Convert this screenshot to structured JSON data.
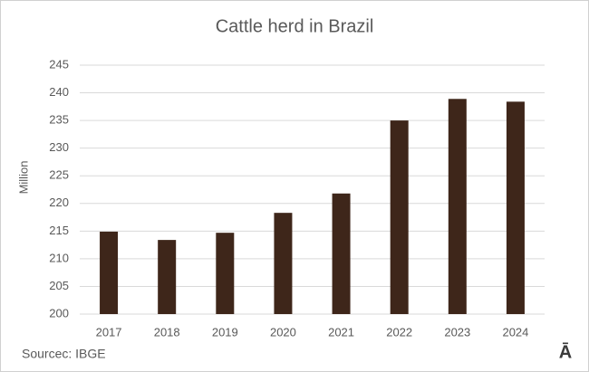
{
  "chart_data": {
    "type": "bar",
    "title": "Cattle herd in Brazil",
    "y_label": "Million",
    "source": "Sourcec: IBGE",
    "logo": "Ā",
    "categories": [
      "2017",
      "2018",
      "2019",
      "2020",
      "2021",
      "2022",
      "2023",
      "2024"
    ],
    "values": [
      214.9,
      213.4,
      214.7,
      218.3,
      221.8,
      235.0,
      238.9,
      238.4
    ],
    "color": "#3e261a",
    "ylim": [
      200,
      245
    ],
    "yticks": [
      200,
      205,
      210,
      215,
      220,
      225,
      230,
      235,
      240,
      245
    ],
    "grid": true
  }
}
